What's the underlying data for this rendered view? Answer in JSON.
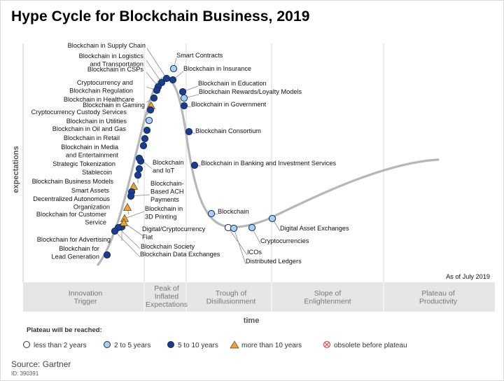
{
  "header": {
    "title": "Hype Cycle for Blockchain Business, 2019"
  },
  "footer": {
    "source": "Source: Gartner",
    "id": "ID: 390391"
  },
  "chart": {
    "y_axis_label": "expectations",
    "x_axis_label": "time",
    "as_of": "As of July 2019",
    "phases": [
      {
        "lines": [
          "Innovation",
          "Trigger"
        ]
      },
      {
        "lines": [
          "Peak of",
          "Inflated",
          "Expectations"
        ]
      },
      {
        "lines": [
          "Trough of",
          "Disillusionment"
        ]
      },
      {
        "lines": [
          "Slope of",
          "Enlightenment"
        ]
      },
      {
        "lines": [
          "Plateau of",
          "Productivity"
        ]
      }
    ]
  },
  "legend": {
    "title": "Plateau will be reached:",
    "items": [
      {
        "label": "less than 2 years",
        "marker": "circle",
        "color": "#ffffff"
      },
      {
        "label": "2 to 5 years",
        "marker": "circle",
        "color": "#a8d0ec"
      },
      {
        "label": "5 to 10 years",
        "marker": "circle",
        "color": "#1c3d8c"
      },
      {
        "label": "more than 10 years",
        "marker": "triangle",
        "color": "#e8a33a"
      },
      {
        "label": "obsolete before plateau",
        "marker": "cross-circle",
        "color": "#e05050"
      }
    ]
  },
  "technologies": [
    {
      "lines": [
        "Blockchain in Supply Chain"
      ],
      "plateau": "5 to 10 years"
    },
    {
      "lines": [
        "Blockchain in Logistics",
        "and Transportation"
      ],
      "plateau": "5 to 10 years"
    },
    {
      "lines": [
        "Blockchain in CSPs"
      ],
      "plateau": "5 to 10 years"
    },
    {
      "lines": [
        "Cryptocurrency and",
        "Blockchain Regulation"
      ],
      "plateau": "5 to 10 years"
    },
    {
      "lines": [
        "Blockchain in Healthcare"
      ],
      "plateau": "5 to 10 years"
    },
    {
      "lines": [
        "Blockchain in Gaming"
      ],
      "plateau": "more than 10 years"
    },
    {
      "lines": [
        "Cryptocurrency Custody Services"
      ],
      "plateau": "5 to 10 years"
    },
    {
      "lines": [
        "Blockchain in Utilities"
      ],
      "plateau": "2 to 5 years"
    },
    {
      "lines": [
        "Blockchain in Oil and Gas"
      ],
      "plateau": "5 to 10 years"
    },
    {
      "lines": [
        "Blockchain in Retail"
      ],
      "plateau": "5 to 10 years"
    },
    {
      "lines": [
        "Blockchain in Media",
        "and Entertainment"
      ],
      "plateau": "5 to 10 years"
    },
    {
      "lines": [
        "Strategic Tokenization"
      ],
      "plateau": "5 to 10 years"
    },
    {
      "lines": [
        "Stablecoin"
      ],
      "plateau": "5 to 10 years"
    },
    {
      "lines": [
        "Blockchain Business Models"
      ],
      "plateau": "5 to 10 years"
    },
    {
      "lines": [
        "Smart Assets"
      ],
      "plateau": "more than 10 years"
    },
    {
      "lines": [
        "Decentralized Autonomous",
        "Organization"
      ],
      "plateau": "5 to 10 years"
    },
    {
      "lines": [
        "Blockchain for Customer",
        "Service"
      ],
      "plateau": "more than 10 years"
    },
    {
      "lines": [
        "Blockchain for Advertising"
      ],
      "plateau": "5 to 10 years"
    },
    {
      "lines": [
        "Blockchain for",
        "Lead Generation"
      ],
      "plateau": "5 to 10 years"
    },
    {
      "lines": [
        "Blockchain",
        "and IoT"
      ],
      "plateau": "5 to 10 years"
    },
    {
      "lines": [
        "Blockchain-",
        "Based ACH",
        "Payments"
      ],
      "plateau": "5 to 10 years"
    },
    {
      "lines": [
        "Blockchain in",
        "3D Printing"
      ],
      "plateau": "more than 10 years"
    },
    {
      "lines": [
        "Digital/Cryptocurrency",
        "Fiat"
      ],
      "plateau": "more than 10 years"
    },
    {
      "lines": [
        "Blockchain Society"
      ],
      "plateau": "5 to 10 years"
    },
    {
      "lines": [
        "Blockchain Data Exchanges"
      ],
      "plateau": "5 to 10 years"
    },
    {
      "lines": [
        "Smart Contracts"
      ],
      "plateau": "2 to 5 years"
    },
    {
      "lines": [
        "Blockchain in Insurance"
      ],
      "plateau": "5 to 10 years"
    },
    {
      "lines": [
        "Blockchain in Education"
      ],
      "plateau": "5 to 10 years"
    },
    {
      "lines": [
        "Blockchain Rewards/Loyalty Models"
      ],
      "plateau": "2 to 5 years"
    },
    {
      "lines": [
        "Blockchain in Government"
      ],
      "plateau": "5 to 10 years"
    },
    {
      "lines": [
        "Blockchain Consortium"
      ],
      "plateau": "5 to 10 years"
    },
    {
      "lines": [
        "Blockchain in Banking and Investment Services"
      ],
      "plateau": "5 to 10 years"
    },
    {
      "lines": [
        "Blockchain"
      ],
      "plateau": "2 to 5 years"
    },
    {
      "lines": [
        "ICOs"
      ],
      "plateau": "less than 2 years"
    },
    {
      "lines": [
        "Distributed Ledgers"
      ],
      "plateau": "2 to 5 years"
    },
    {
      "lines": [
        "Cryptocurrencies"
      ],
      "plateau": "2 to 5 years"
    },
    {
      "lines": [
        "Digital Asset Exchanges"
      ],
      "plateau": "2 to 5 years"
    }
  ]
}
